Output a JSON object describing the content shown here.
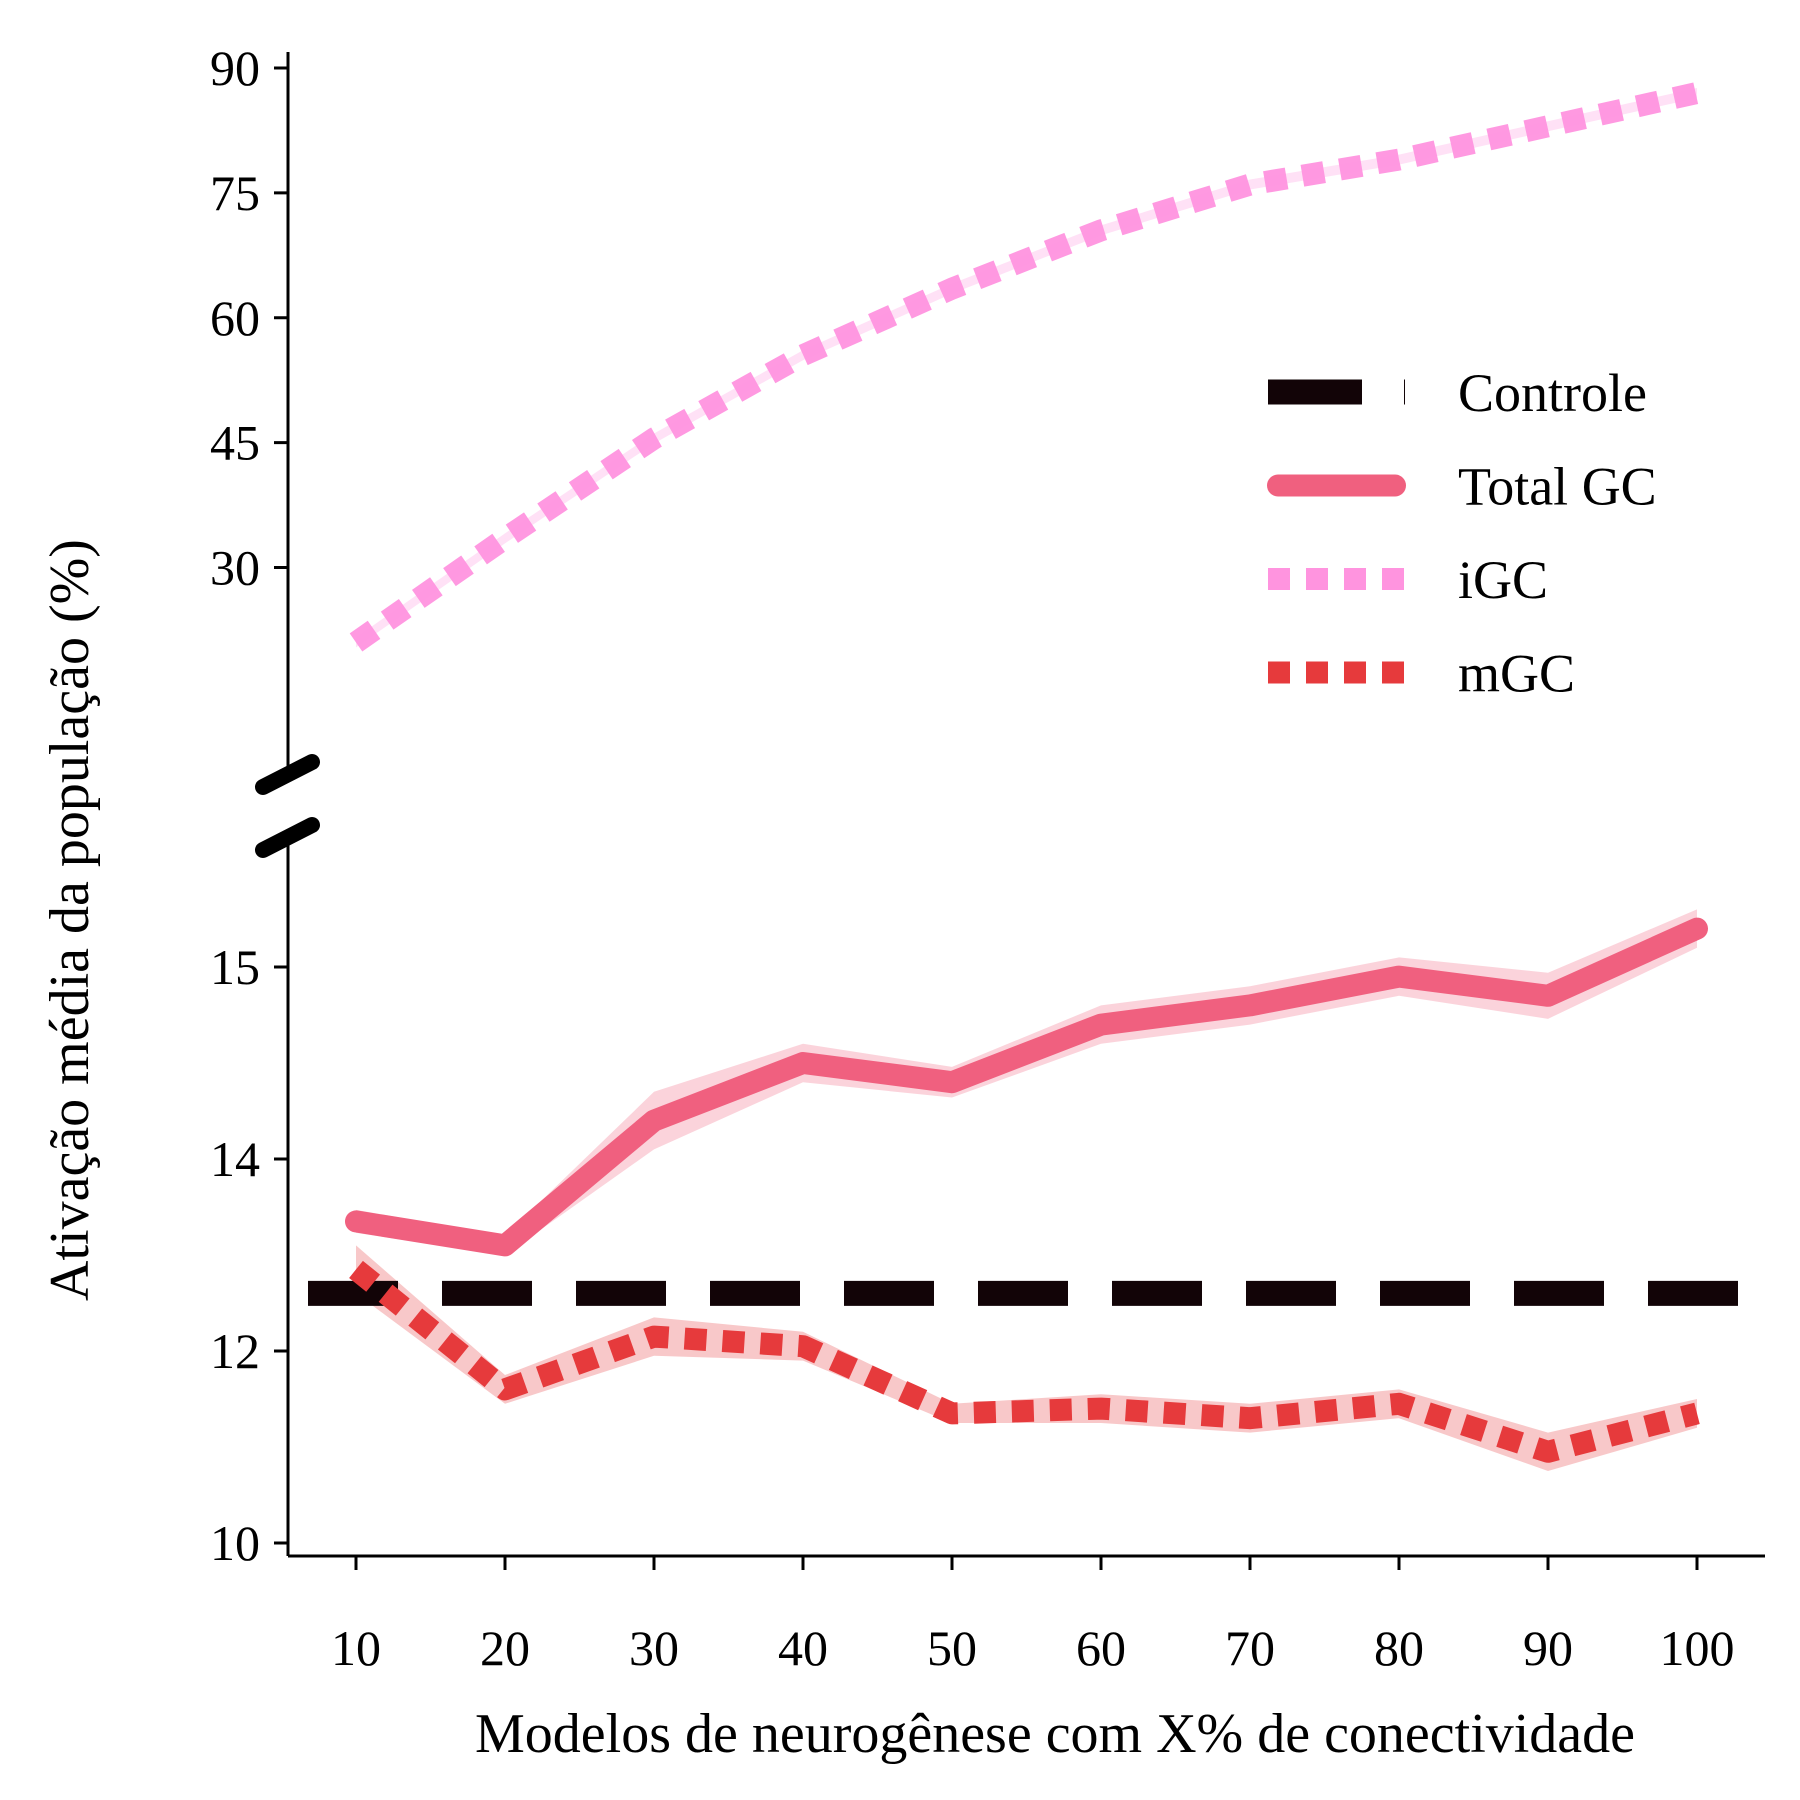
{
  "chart_data": {
    "type": "line",
    "xlabel": "Modelos de neurogênese com X% de conectividade",
    "ylabel": "Ativação média da população (%)",
    "x": [
      10,
      20,
      30,
      40,
      50,
      60,
      70,
      80,
      90,
      100
    ],
    "x_tick_labels": [
      "10",
      "20",
      "30",
      "40",
      "50",
      "60",
      "70",
      "80",
      "90",
      "100"
    ],
    "y_axis": {
      "broken": true,
      "upper_segment": {
        "ylim": [
          19,
          91
        ],
        "ticks": [
          "30",
          "45",
          "60",
          "75",
          "90"
        ],
        "tick_values": [
          30,
          45,
          60,
          75,
          90
        ]
      },
      "lower_segment": {
        "ylim": [
          9.9,
          17.5
        ],
        "ticks": [
          "10",
          "12",
          "14",
          "15"
        ]
      }
    },
    "grid": false,
    "legend_position": "upper-right",
    "series": [
      {
        "name": "Controle",
        "style": "dashed",
        "color": "#120407",
        "segment": "lower",
        "values": [
          12.6,
          12.6,
          12.6,
          12.6,
          12.6,
          12.6,
          12.6,
          12.6,
          12.6,
          12.6
        ]
      },
      {
        "name": "Total GC",
        "style": "solid",
        "color": "#f0607f",
        "segment": "lower",
        "values": [
          13.35,
          13.1,
          14.2,
          14.5,
          14.4,
          14.7,
          14.8,
          14.95,
          14.85,
          15.2
        ],
        "ci_half_width": [
          0.12,
          0.1,
          0.15,
          0.1,
          0.08,
          0.1,
          0.1,
          0.1,
          0.12,
          0.1
        ]
      },
      {
        "name": "iGC",
        "style": "dotted",
        "color": "#ff94df",
        "segment": "upper",
        "values": [
          21,
          33.5,
          45.5,
          55.5,
          63.5,
          70.5,
          76,
          79,
          83,
          87
        ],
        "ci_half_width": [
          0.6,
          0.6,
          0.6,
          0.6,
          0.6,
          0.6,
          0.6,
          0.6,
          0.6,
          0.6
        ]
      },
      {
        "name": "mGC",
        "style": "dotted",
        "color": "#e63a3c",
        "segment": "lower",
        "values": [
          12.85,
          11.6,
          12.15,
          12.05,
          11.35,
          11.4,
          11.3,
          11.45,
          10.95,
          11.35
        ],
        "ci_half_width": [
          0.25,
          0.15,
          0.2,
          0.15,
          0.1,
          0.15,
          0.15,
          0.15,
          0.2,
          0.15
        ]
      }
    ]
  }
}
